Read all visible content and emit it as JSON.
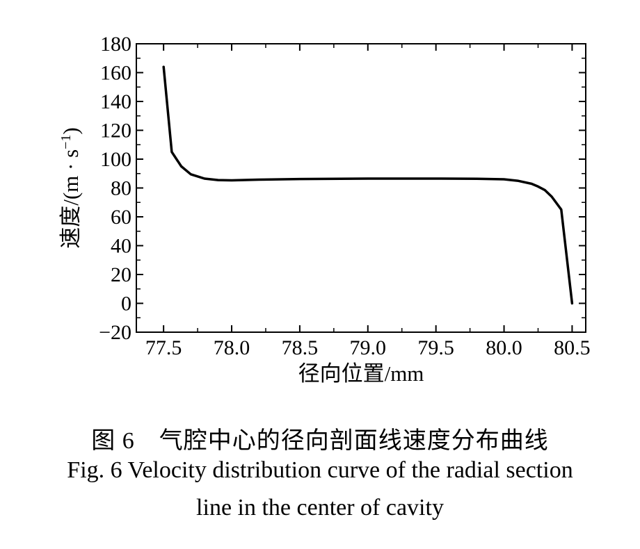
{
  "chart_data": {
    "type": "line",
    "xlabel": "径向位置/mm",
    "ylabel": "速度/(m · s",
    "ylabel_sup": "−1",
    "ylabel_close": ")",
    "xlim": [
      77.3,
      80.6
    ],
    "ylim": [
      -20,
      180
    ],
    "xticks": [
      77.5,
      78.0,
      78.5,
      79.0,
      79.5,
      80.0,
      80.5
    ],
    "xtick_labels": [
      "77.5",
      "78.0",
      "78.5",
      "79.0",
      "79.5",
      "80.0",
      "80.5"
    ],
    "yticks": [
      -20,
      0,
      20,
      40,
      60,
      80,
      100,
      120,
      140,
      160,
      180
    ],
    "ytick_labels": [
      "−20",
      "0",
      "20",
      "40",
      "60",
      "80",
      "100",
      "120",
      "140",
      "160",
      "180"
    ],
    "grid": false,
    "series": [
      {
        "color": "#000000",
        "x": [
          77.5,
          77.56,
          77.63,
          77.7,
          77.8,
          77.9,
          78.0,
          78.2,
          78.5,
          79.0,
          79.5,
          79.8,
          80.0,
          80.1,
          80.2,
          80.25,
          80.3,
          80.35,
          80.42,
          80.5
        ],
        "y": [
          164,
          105,
          95,
          89.5,
          86.5,
          85.5,
          85.3,
          85.8,
          86.2,
          86.5,
          86.5,
          86.4,
          86,
          85,
          83,
          81,
          78.5,
          74,
          65,
          0
        ]
      }
    ]
  },
  "caption": {
    "cn": "图 6　气腔中心的径向剖面线速度分布曲线",
    "en_line1": "Fig. 6   Velocity distribution curve of the radial section",
    "en_line2": "line in the center of cavity"
  }
}
